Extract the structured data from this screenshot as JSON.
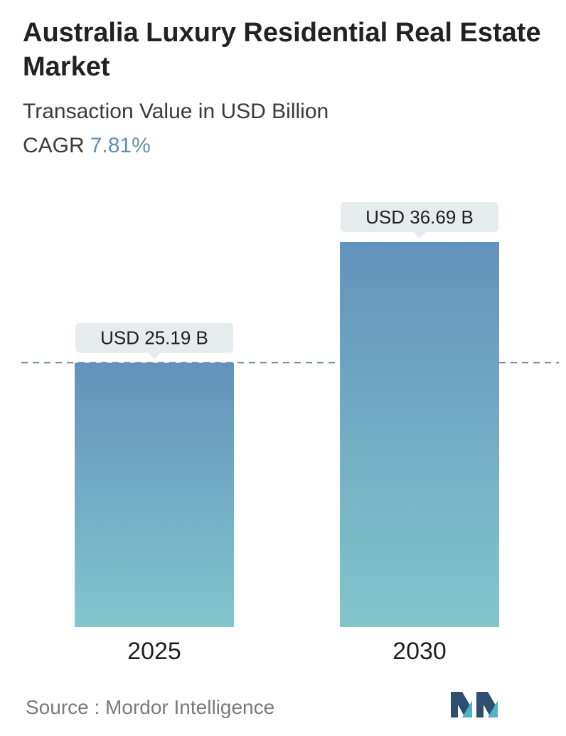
{
  "header": {
    "title": "Australia Luxury Residential Real Estate Market",
    "subtitle": "Transaction Value in USD Billion",
    "cagr_label": "CAGR",
    "cagr_value": "7.81%"
  },
  "chart_data": {
    "type": "bar",
    "categories": [
      "2025",
      "2030"
    ],
    "values": [
      25.19,
      36.69
    ],
    "data_labels": [
      "USD 25.19 B",
      "USD 36.69 B"
    ],
    "title": "Australia Luxury Residential Real Estate Market",
    "subtitle": "Transaction Value in USD Billion",
    "xlabel": "",
    "ylabel": "",
    "ylim": [
      0,
      36.69
    ],
    "grid": false,
    "reference_line_value": 25.19,
    "colors": {
      "bar_top": "#6393bc",
      "bar_bottom": "#82c6cc",
      "label_bg": "#e6ebee",
      "dash": "#5f7f98"
    }
  },
  "footer": {
    "source": "Source :  Mordor Intelligence",
    "logo_icon": "mordor-intelligence-logo-icon",
    "logo_colors": [
      "#2f4f6e",
      "#4fb0c6"
    ]
  }
}
